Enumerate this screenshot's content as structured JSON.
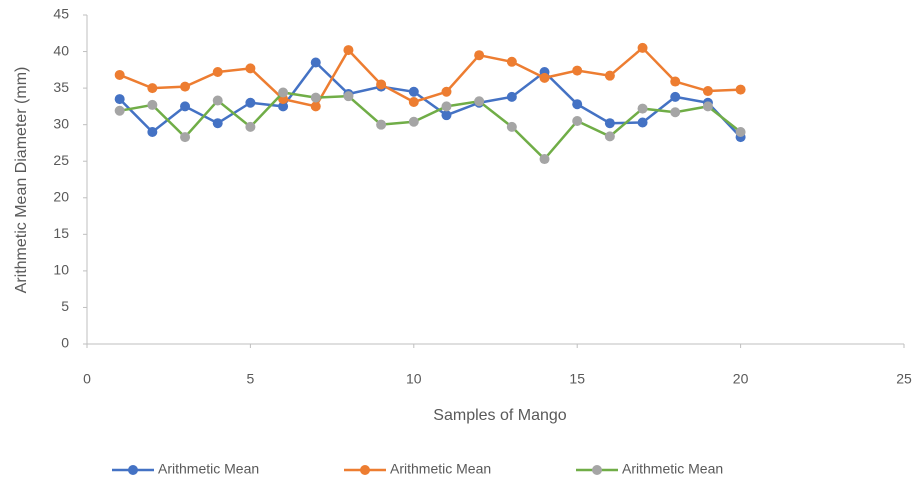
{
  "chart_data": {
    "type": "line",
    "x_label": "Samples of Mango",
    "y_label": "Arithmetic Mean Diameter (mm)",
    "x": [
      1,
      2,
      3,
      4,
      5,
      6,
      7,
      8,
      9,
      10,
      11,
      12,
      13,
      14,
      15,
      16,
      17,
      18,
      19,
      20
    ],
    "series": [
      {
        "name": "Arithmetic Mean",
        "color": "#4472c4",
        "marker_color": "#4472c4",
        "values": [
          33.5,
          29,
          32.5,
          30.2,
          33,
          32.5,
          38.5,
          34.2,
          35.2,
          34.5,
          31.3,
          33,
          33.8,
          37.2,
          32.8,
          30.2,
          30.3,
          33.8,
          33,
          28.3
        ]
      },
      {
        "name": "Arithmetic Mean",
        "color": "#ed7d31",
        "marker_color": "#ed7d31",
        "values": [
          36.8,
          35,
          35.2,
          37.2,
          37.7,
          33.5,
          32.5,
          40.2,
          35.5,
          33.1,
          34.5,
          39.5,
          38.6,
          36.4,
          37.4,
          36.7,
          40.5,
          35.9,
          34.6,
          34.8
        ]
      },
      {
        "name": "Arithmetic Mean",
        "color": "#70ad47",
        "marker_color": "#a5a5a5",
        "values": [
          31.9,
          32.7,
          28.3,
          33.3,
          29.7,
          34.4,
          33.7,
          33.9,
          30,
          30.4,
          32.5,
          33.2,
          29.7,
          25.3,
          30.5,
          28.4,
          32.2,
          31.7,
          32.5,
          29
        ]
      }
    ],
    "xlim": [
      0,
      25
    ],
    "xticks": [
      0,
      5,
      10,
      15,
      20,
      25
    ],
    "ylim": [
      0,
      45
    ],
    "yticks": [
      0,
      5,
      10,
      15,
      20,
      25,
      30,
      35,
      40,
      45
    ],
    "grid": false,
    "legend": "bottom"
  }
}
